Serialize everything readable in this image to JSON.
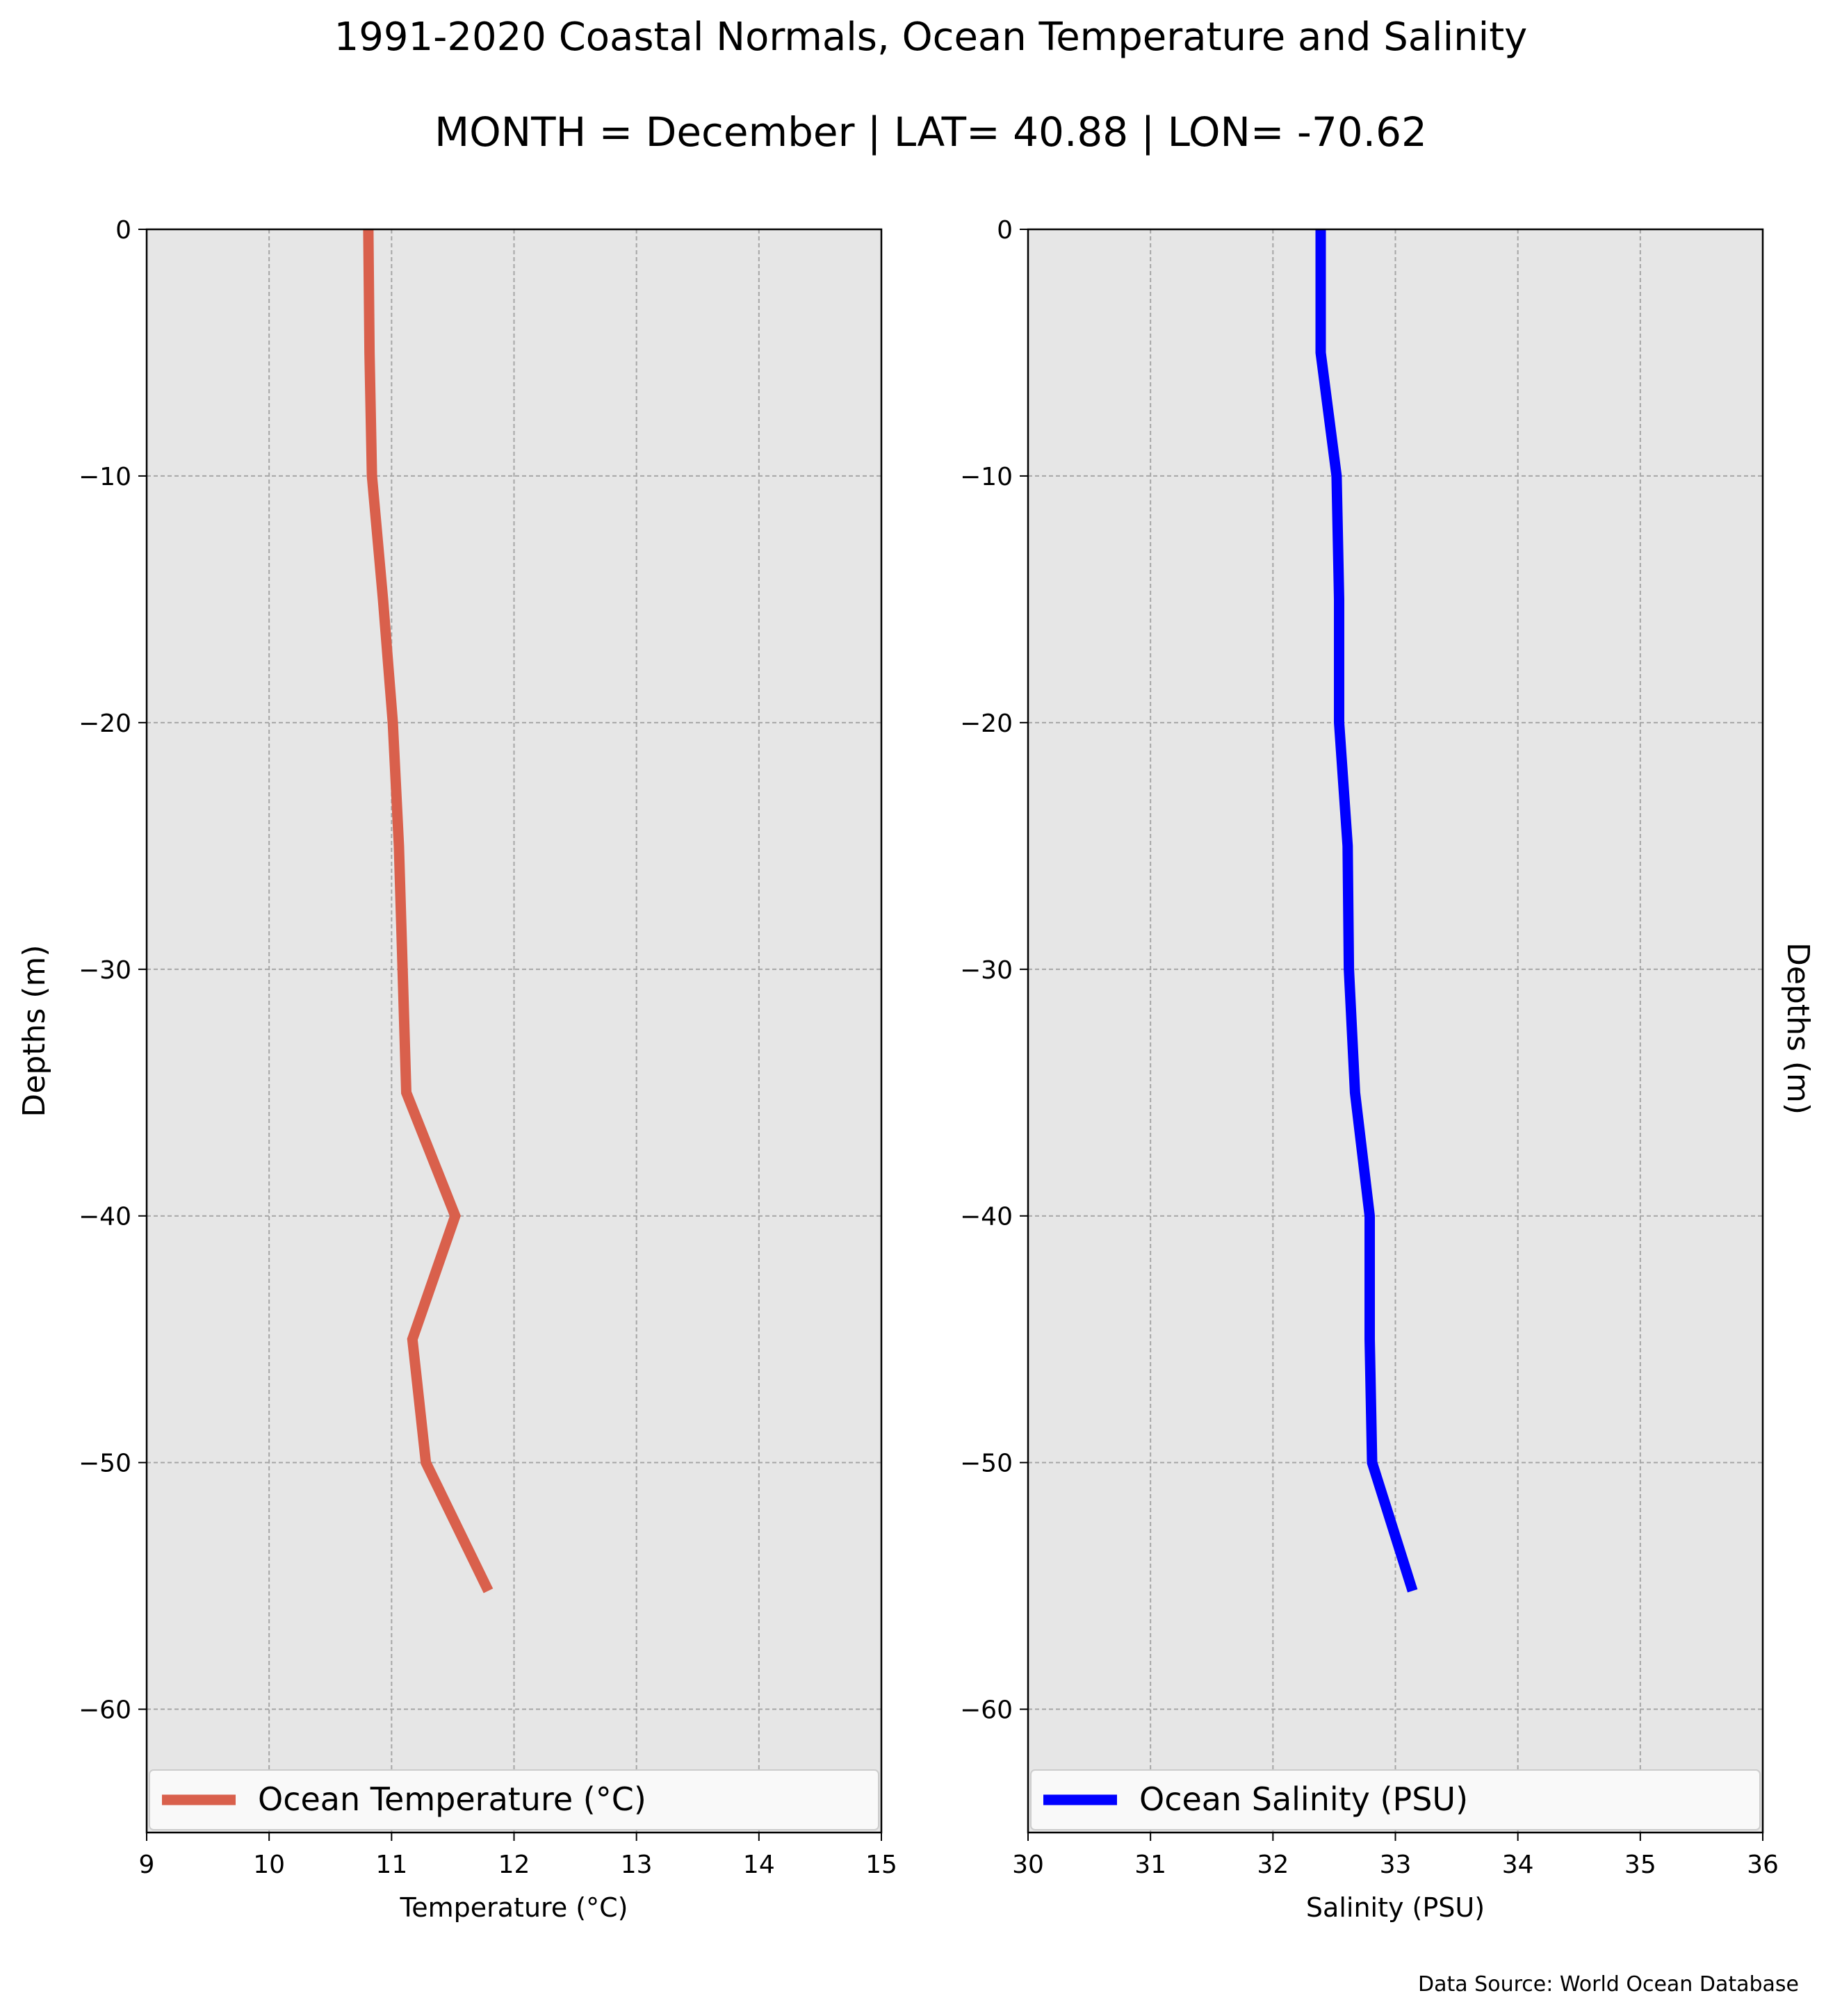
{
  "title": "1991-2020 Coastal Normals, Ocean Temperature and Salinity",
  "subtitle": "MONTH = December | LAT= 40.88 | LON= -70.62",
  "source": "Data Source: World Ocean Database",
  "colors": {
    "plot_bg": "#e6e6e6",
    "grid": "#a6a6a6",
    "temperature": "#d9604c",
    "salinity": "#0000ff"
  },
  "chart_data": [
    {
      "type": "line",
      "xlabel": "Temperature (°C)",
      "ylabel": "Depths (m)",
      "xlim": [
        9,
        15
      ],
      "ylim": [
        -65,
        0
      ],
      "xticks": [
        "9",
        "10",
        "11",
        "12",
        "13",
        "14",
        "15"
      ],
      "yticks": [
        "0",
        "−10",
        "−20",
        "−30",
        "−40",
        "−50",
        "−60"
      ],
      "grid": true,
      "legend_position": "bottom",
      "series": [
        {
          "name": "Ocean Temperature (°C)",
          "color": "#d9604c",
          "x": [
            10.81,
            10.82,
            10.84,
            10.93,
            11.01,
            11.06,
            11.12,
            11.52,
            11.17,
            11.28,
            11.79
          ],
          "y": [
            0,
            -5,
            -10,
            -15,
            -20,
            -25,
            -35,
            -40,
            -45,
            -50,
            -55.2
          ]
        }
      ]
    },
    {
      "type": "line",
      "xlabel": "Salinity (PSU)",
      "ylabel": "Depths (m)",
      "xlim": [
        30,
        36
      ],
      "ylim": [
        -65,
        0
      ],
      "xticks": [
        "30",
        "31",
        "32",
        "33",
        "34",
        "35",
        "36"
      ],
      "yticks": [
        "0",
        "−10",
        "−20",
        "−30",
        "−40",
        "−50",
        "−60"
      ],
      "grid": true,
      "legend_position": "bottom",
      "series": [
        {
          "name": "Ocean Salinity (PSU)",
          "color": "#0000ff",
          "x": [
            32.39,
            32.39,
            32.52,
            32.54,
            32.54,
            32.61,
            32.62,
            32.67,
            32.79,
            32.79,
            32.81,
            33.14
          ],
          "y": [
            0,
            -5,
            -10,
            -15,
            -20,
            -25,
            -30,
            -35,
            -40,
            -45,
            -50,
            -55.2
          ]
        }
      ]
    }
  ]
}
